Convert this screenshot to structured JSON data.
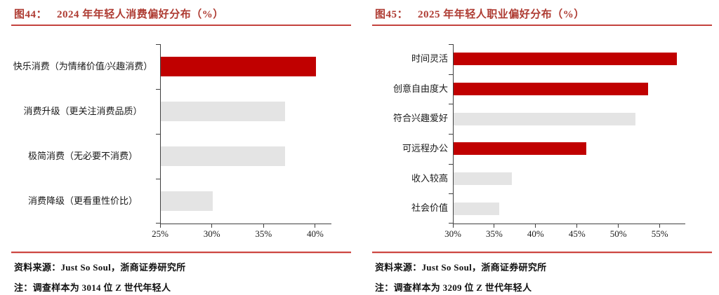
{
  "colors": {
    "bar_red": "#C00000",
    "bar_gray": "#E4E4E4",
    "title_red": "#AE3B32",
    "rule_red": "#C4423D",
    "axis": "#404040"
  },
  "panels": [
    {
      "fig_label": "图44：",
      "title": "2024 年年轻人消费偏好分布（%）",
      "source": "资料来源：Just So Soul，浙商证券研究所",
      "note": "注：调查样本为 3014 位 Z 世代年轻人"
    },
    {
      "fig_label": "图45：",
      "title": "2025 年年轻人职业偏好分布（%）",
      "source": "资料来源：Just So Soul，浙商证券研究所",
      "note": "注：调查样本为 3209 位 Z 世代年轻人"
    }
  ],
  "chart_data": [
    {
      "type": "bar",
      "orientation": "horizontal",
      "title": "2024 年年轻人消费偏好分布（%）",
      "categories": [
        "快乐消费（为情绪价值/兴趣消费）",
        "消费升级（更关注消费品质）",
        "极简消费（无必要不消费）",
        "消费降级（更看重性价比）"
      ],
      "values": [
        40,
        37,
        37,
        30
      ],
      "unit": "%",
      "xlim": [
        25,
        41.5
      ],
      "xticks": [
        25,
        30,
        35,
        40
      ],
      "bar_colors": [
        "#C00000",
        "#E4E4E4",
        "#E4E4E4",
        "#E4E4E4"
      ],
      "grid": false,
      "legend": false
    },
    {
      "type": "bar",
      "orientation": "horizontal",
      "title": "2025 年年轻人职业偏好分布（%）",
      "categories": [
        "时间灵活",
        "创意自由度大",
        "符合兴趣爱好",
        "可远程办公",
        "收入较高",
        "社会价值"
      ],
      "values": [
        57,
        53.5,
        52,
        46,
        37,
        35.5
      ],
      "unit": "%",
      "xlim": [
        30,
        58
      ],
      "xticks": [
        30,
        35,
        40,
        45,
        50,
        55
      ],
      "bar_colors": [
        "#C00000",
        "#C00000",
        "#E4E4E4",
        "#C00000",
        "#E4E4E4",
        "#E4E4E4"
      ],
      "grid": false,
      "legend": false
    }
  ]
}
